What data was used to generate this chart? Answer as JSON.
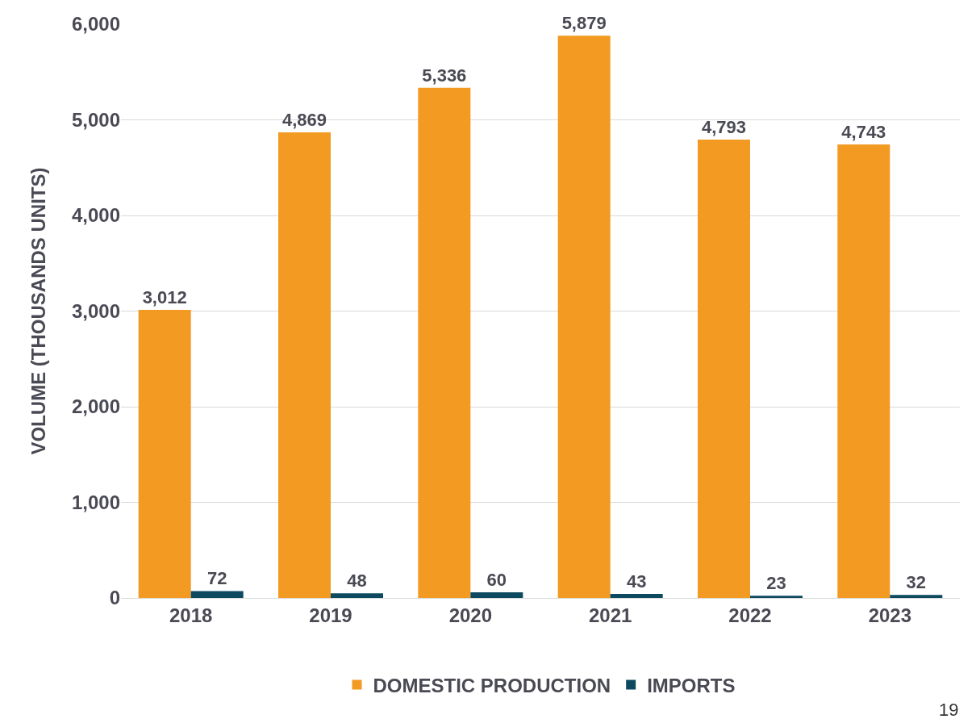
{
  "chart_data": {
    "type": "bar",
    "ylabel": "VOLUME (THOUSANDS UNITS)",
    "categories": [
      "2018",
      "2019",
      "2020",
      "2021",
      "2022",
      "2023"
    ],
    "series": [
      {
        "name": "DOMESTIC PRODUCTION",
        "color": "#f29a22",
        "values": [
          3012,
          4869,
          5336,
          5879,
          4793,
          4743
        ],
        "value_labels": [
          "3,012",
          "4,869",
          "5,336",
          "5,879",
          "4,793",
          "4,743"
        ]
      },
      {
        "name": "IMPORTS",
        "color": "#0e4a5f",
        "values": [
          72,
          48,
          60,
          43,
          23,
          32
        ],
        "value_labels": [
          "72",
          "48",
          "60",
          "43",
          "23",
          "32"
        ]
      }
    ],
    "ylim": [
      0,
      6000
    ],
    "yticks": [
      {
        "value": 0,
        "label": "0"
      },
      {
        "value": 1000,
        "label": "1,000"
      },
      {
        "value": 2000,
        "label": "2,000"
      },
      {
        "value": 3000,
        "label": "3,000"
      },
      {
        "value": 4000,
        "label": "4,000"
      },
      {
        "value": 5000,
        "label": "5,000"
      },
      {
        "value": 6000,
        "label": "6,000"
      }
    ],
    "grid": "y",
    "legend": "bottom",
    "annotations": [
      "19"
    ]
  }
}
